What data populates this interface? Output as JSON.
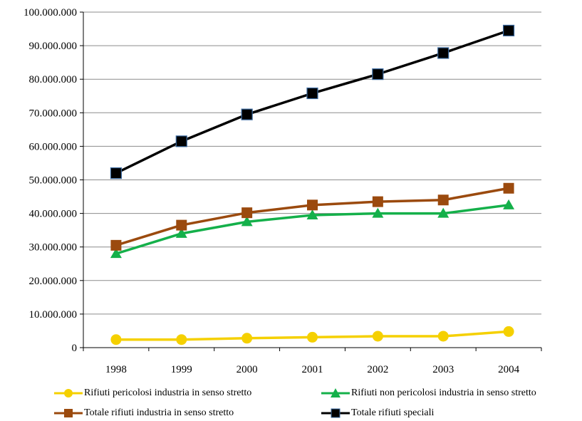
{
  "chart_data": {
    "type": "line",
    "x": [
      "1998",
      "1999",
      "2000",
      "2001",
      "2002",
      "2003",
      "2004"
    ],
    "ylim": [
      0,
      100000000
    ],
    "yticks": [
      0,
      10000000,
      20000000,
      30000000,
      40000000,
      50000000,
      60000000,
      70000000,
      80000000,
      90000000,
      100000000
    ],
    "ytick_labels": [
      "0",
      "10.000.000",
      "20.000.000",
      "30.000.000",
      "40.000.000",
      "50.000.000",
      "60.000.000",
      "70.000.000",
      "80.000.000",
      "90.000.000",
      "100.000.000"
    ],
    "grid": "horizontal",
    "legend_position": "bottom",
    "series": [
      {
        "name": "Rifiuti pericolosi industria in senso  stretto",
        "color": "#f5d000",
        "marker": "circle",
        "values": [
          2400000,
          2400000,
          2800000,
          3100000,
          3400000,
          3400000,
          4800000
        ]
      },
      {
        "name": "Rifiuti non pericolosi industria in senso  stretto",
        "color": "#14b04a",
        "marker": "triangle",
        "values": [
          28000000,
          34000000,
          37500000,
          39500000,
          40000000,
          40000000,
          42500000
        ]
      },
      {
        "name": "Totale rifiuti industria in senso  stretto",
        "color": "#9b4a0e",
        "marker": "square",
        "values": [
          30500000,
          36500000,
          40200000,
          42500000,
          43500000,
          44000000,
          47500000
        ]
      },
      {
        "name": "Totale rifiuti speciali",
        "color": "#000000",
        "marker": "square",
        "values": [
          52000000,
          61500000,
          69500000,
          75800000,
          81500000,
          87800000,
          94500000
        ]
      }
    ]
  }
}
